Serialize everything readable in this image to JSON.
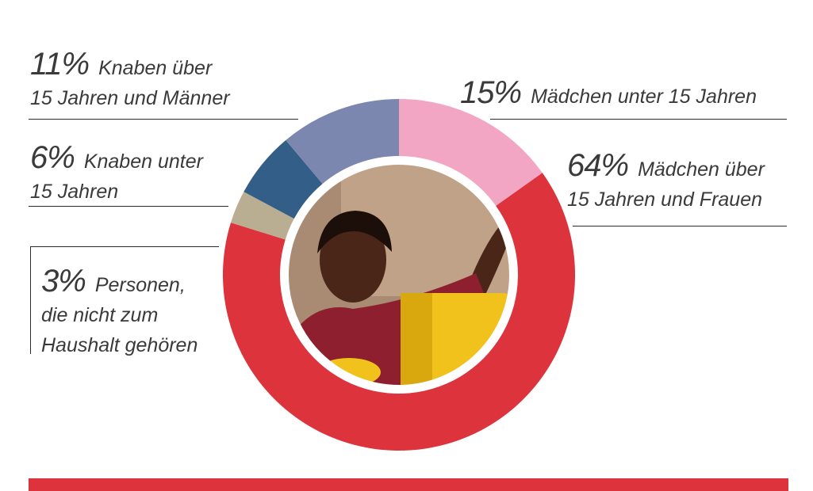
{
  "chart_data": {
    "type": "pie",
    "donut": true,
    "start": "12 o'clock",
    "direction": "clockwise",
    "slices": [
      {
        "key": "girls_under",
        "value": 15,
        "percent_label": "15%",
        "text": "Mädchen unter 15 Jahren",
        "color": "#f2a6c3"
      },
      {
        "key": "girls_over",
        "value": 64,
        "percent_label": "64%",
        "text": "Mädchen über 15 Jahren und Frauen",
        "color": "#dd333d"
      },
      {
        "key": "nonhh",
        "value": 3,
        "percent_label": "3%",
        "text": "Personen, die nicht zum Haushalt gehören",
        "color": "#b9ad92"
      },
      {
        "key": "boys_under",
        "value": 6,
        "percent_label": "6%",
        "text": "Knaben unter 15 Jahren",
        "color": "#335e88"
      },
      {
        "key": "boys_over",
        "value": 11,
        "percent_label": "11%",
        "text": "Knaben über 15 Jahren und Männer",
        "color": "#7c87af"
      }
    ]
  },
  "labels": {
    "boys_over": {
      "pct": "11%",
      "line1": "Knaben über",
      "line2": "15 Jahren und Männer"
    },
    "boys_under": {
      "pct": "6%",
      "line1": "Knaben unter",
      "line2": "15 Jahren"
    },
    "nonhh": {
      "pct": "3%",
      "line1": "Personen,",
      "line2": "die nicht zum",
      "line3": "Haushalt gehören"
    },
    "girls_under": {
      "pct": "15%",
      "line1": "Mädchen unter 15 Jahren"
    },
    "girls_over": {
      "pct": "64%",
      "line1": "Mädchen über",
      "line2": "15 Jahren und Frauen"
    }
  },
  "colors": {
    "accent_red": "#dd333d",
    "photo_wall": "#b99a80",
    "photo_canister": "#f1c21b",
    "photo_skin": "#5a3020",
    "photo_shirt": "#8e1f2e"
  }
}
